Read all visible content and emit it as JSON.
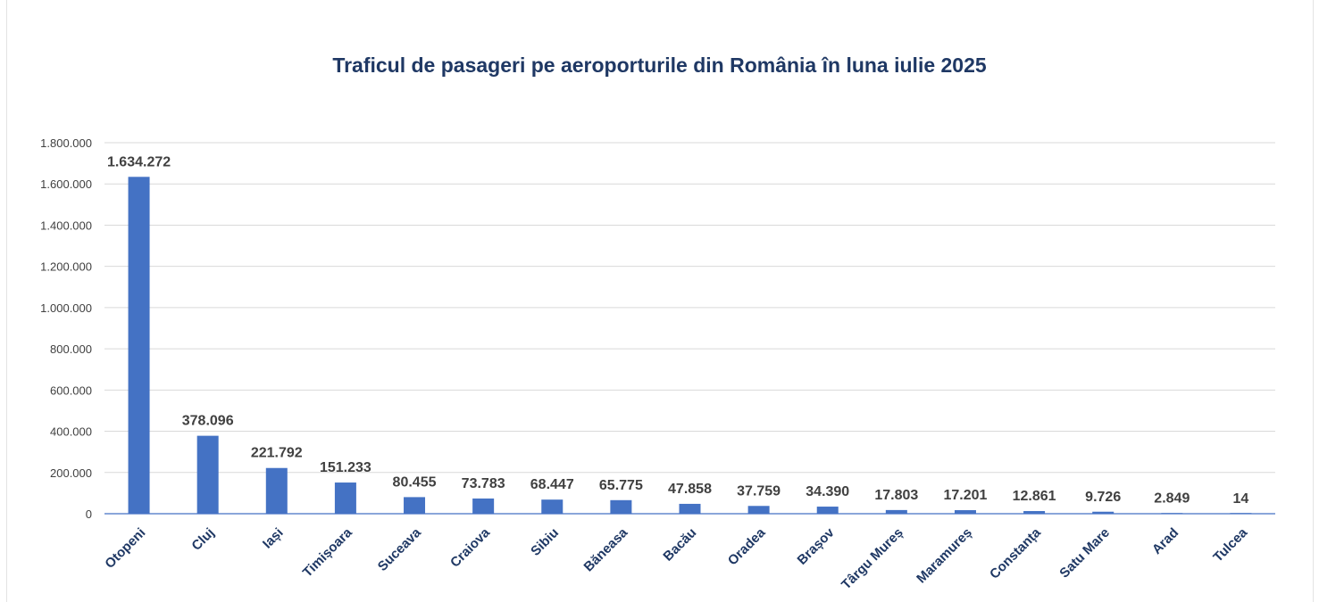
{
  "chart_data": {
    "type": "bar",
    "title": "Traficul de pasageri pe aeroporturile din România în luna iulie 2025",
    "xlabel": "",
    "ylabel": "",
    "ylim": [
      0,
      1800000
    ],
    "y_ticks": [
      0,
      200000,
      400000,
      600000,
      800000,
      1000000,
      1200000,
      1400000,
      1600000,
      1800000
    ],
    "y_tick_labels": [
      "0",
      "200.000",
      "400.000",
      "600.000",
      "800.000",
      "1.000.000",
      "1.200.000",
      "1.400.000",
      "1.600.000",
      "1.800.000"
    ],
    "grid": true,
    "legend": "none",
    "bar_color": "#4472c4",
    "categories": [
      "Otopeni",
      "Cluj",
      "Iași",
      "Timișoara",
      "Suceava",
      "Craiova",
      "Sibiu",
      "Băneasa",
      "Bacău",
      "Oradea",
      "Brașov",
      "Târgu Mureș",
      "Maramureș",
      "Constanța",
      "Satu Mare",
      "Arad",
      "Tulcea"
    ],
    "values": [
      1634272,
      378096,
      221792,
      151233,
      80455,
      73783,
      68447,
      65775,
      47858,
      37759,
      34390,
      17803,
      17201,
      12861,
      9726,
      2849,
      14
    ],
    "data_labels": [
      "1.634.272",
      "378.096",
      "221.792",
      "151.233",
      "80.455",
      "73.783",
      "68.447",
      "65.775",
      "47.858",
      "37.759",
      "34.390",
      "17.803",
      "17.201",
      "12.861",
      "9.726",
      "2.849",
      "14"
    ]
  }
}
